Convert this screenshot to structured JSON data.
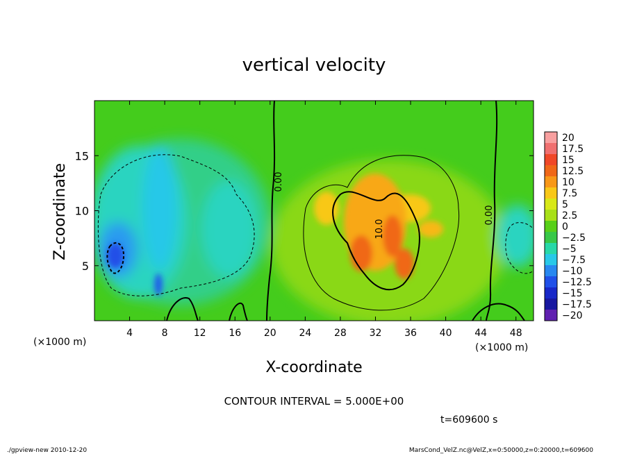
{
  "chart_data": {
    "type": "heatmap",
    "title": "vertical velocity",
    "xlabel": "X-coordinate",
    "ylabel": "Z-coordinate",
    "x_unit_label": "(×1000 m)",
    "z_unit_label": "(×1000 m)",
    "x_ticks": [
      4,
      8,
      12,
      16,
      20,
      24,
      28,
      32,
      36,
      40,
      44,
      48
    ],
    "x_tick_labels": [
      "4",
      "8",
      "12",
      "16",
      "20",
      "24",
      "28",
      "32",
      "36",
      "40",
      "44",
      "48"
    ],
    "z_ticks": [
      5,
      10,
      15
    ],
    "z_tick_labels": [
      "5",
      "10",
      "15"
    ],
    "xlim": [
      0,
      50
    ],
    "zlim": [
      0,
      20
    ],
    "colorbar": {
      "levels": [
        20,
        17.5,
        15,
        12.5,
        10,
        7.5,
        5,
        2.5,
        0,
        -2.5,
        -5,
        -7.5,
        -10,
        -12.5,
        -15,
        -17.5,
        -20
      ],
      "labels": [
        "20",
        "17.5",
        "15",
        "12.5",
        "10",
        "7.5",
        "5",
        "2.5",
        "0",
        "−2.5",
        "−5",
        "−7.5",
        "−10",
        "−12.5",
        "−15",
        "−17.5",
        "−20"
      ],
      "colors": [
        "#f8a0a0",
        "#f07070",
        "#f04828",
        "#f06818",
        "#f89818",
        "#f8c818",
        "#d8e818",
        "#a8e018",
        "#58d018",
        "#38c848",
        "#28d8a8",
        "#28c8e8",
        "#2888f0",
        "#2050e8",
        "#1828c8",
        "#1818a0",
        "#6020b0"
      ]
    },
    "features": [
      {
        "kind": "downdraft",
        "x": 3.0,
        "z": 6.0,
        "value": -12.5
      },
      {
        "kind": "downdraft",
        "x": 7.5,
        "z": 3.5,
        "value": -10
      },
      {
        "kind": "updraft",
        "x": 30.0,
        "z": 6.5,
        "value": 12.5
      },
      {
        "kind": "updraft",
        "x": 34.0,
        "z": 7.5,
        "value": 12.5
      },
      {
        "kind": "updraft",
        "x": 35.5,
        "z": 5.0,
        "value": 12.5
      },
      {
        "kind": "updraft",
        "x": 26.0,
        "z": 9.5,
        "value": 7.5
      },
      {
        "kind": "updraft",
        "x": 38.0,
        "z": 10.0,
        "value": 5
      }
    ],
    "contour_labels": [
      "0.00",
      "10.0",
      "0.00"
    ],
    "contour_interval_text": "CONTOUR INTERVAL = 5.000E+00",
    "time_text": "t=609600 s"
  },
  "footer": {
    "left": "./gpview-new   2010-12-20",
    "right": "MarsCond_VelZ.nc@VelZ,x=0:50000,z=0:20000,t=609600"
  }
}
